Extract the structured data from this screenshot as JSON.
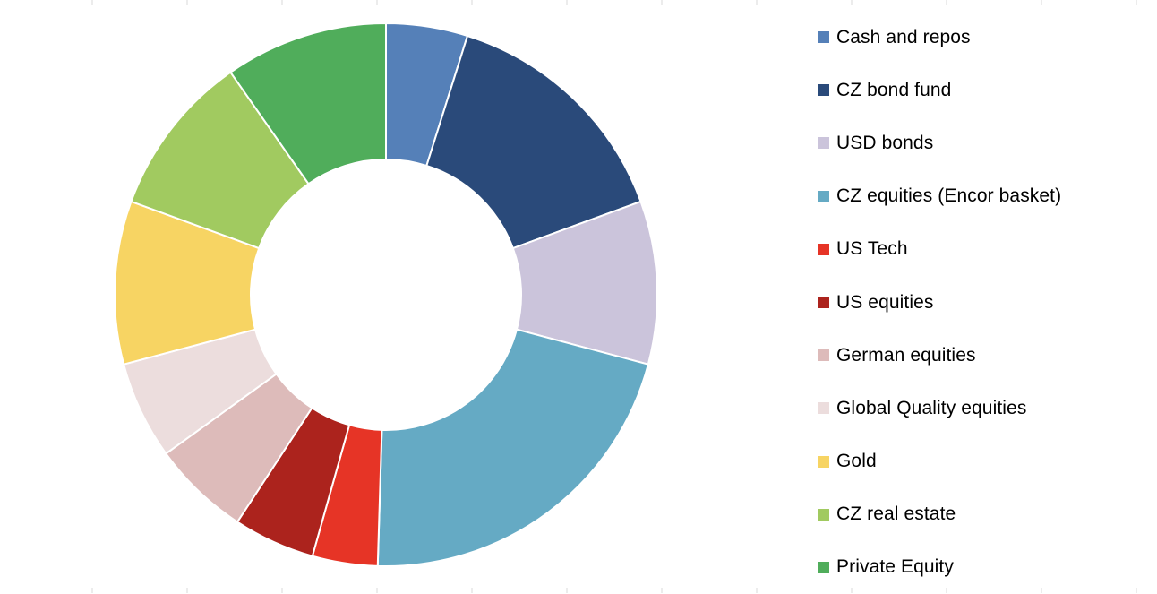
{
  "chart_data": {
    "type": "pie",
    "variant": "donut",
    "title": "",
    "legend_position": "right",
    "series": [
      {
        "values": [
          5,
          15,
          10,
          22,
          4,
          5,
          6,
          6,
          10,
          10,
          10
        ],
        "labels": [
          "Cash and repos",
          "CZ bond fund",
          "USD bonds",
          "CZ equities (Encor basket)",
          "US Tech",
          "US equities",
          "German equities",
          "Global Quality equities",
          "Gold",
          "CZ real estate",
          "Private Equity"
        ],
        "colors": [
          "#5580b8",
          "#2a4a7a",
          "#cbc4db",
          "#65aac4",
          "#e63426",
          "#ac231d",
          "#ddbbba",
          "#ecdddd",
          "#f7d463",
          "#a1ca60",
          "#50ad5b"
        ]
      }
    ]
  }
}
